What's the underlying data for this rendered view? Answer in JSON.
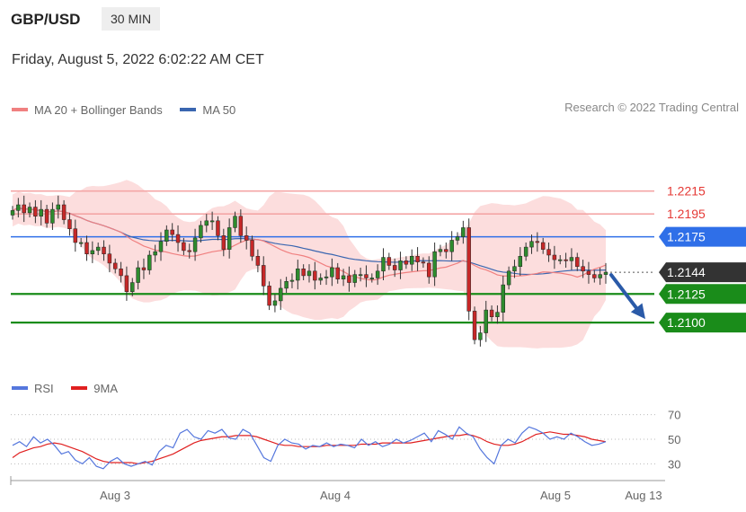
{
  "header": {
    "symbol": "GBP/USD",
    "timeframe": "30 MIN"
  },
  "datetime": "Friday, August 5, 2022 6:02:22 AM CET",
  "legend_main": [
    {
      "label": "MA 20 + Bollinger Bands",
      "color": "#f08080"
    },
    {
      "label": "MA 50",
      "color": "#3a66b0"
    }
  ],
  "legend_rsi": [
    {
      "label": "RSI",
      "color": "#5577dd"
    },
    {
      "label": "9MA",
      "color": "#e02020"
    }
  ],
  "copyright": "Research © 2022 Trading Central",
  "colors": {
    "resistance": "#f4a6a6",
    "pivot": "#2f6fe8",
    "support": "#1a8c1a",
    "current": "#333333",
    "bull": "#2e8b2e",
    "bear": "#c62828",
    "band": "#fcd7d7"
  },
  "chart_data": {
    "type": "candlestick",
    "x_ticks": [
      "Aug 3",
      "Aug 4",
      "Aug 5",
      "Aug 13"
    ],
    "y_range": [
      1.206,
      1.228
    ],
    "levels": [
      {
        "value": 1.2215,
        "label": "1.2215",
        "kind": "resistance"
      },
      {
        "value": 1.2195,
        "label": "1.2195",
        "kind": "resistance"
      },
      {
        "value": 1.2175,
        "label": "1.2175",
        "kind": "pivot"
      },
      {
        "value": 1.2144,
        "label": "1.2144",
        "kind": "current"
      },
      {
        "value": 1.2125,
        "label": "1.2125",
        "kind": "support"
      },
      {
        "value": 1.21,
        "label": "1.2100",
        "kind": "support"
      }
    ],
    "forecast": {
      "from": 1.2144,
      "to": 1.21,
      "direction": "down"
    },
    "close_series": [
      1.2198,
      1.2203,
      1.2196,
      1.2201,
      1.2193,
      1.2199,
      1.2187,
      1.2199,
      1.2203,
      1.219,
      1.2182,
      1.217,
      1.217,
      1.216,
      1.2163,
      1.2166,
      1.216,
      1.2152,
      1.2147,
      1.2141,
      1.2127,
      1.2135,
      1.2148,
      1.2146,
      1.2159,
      1.2162,
      1.2171,
      1.2181,
      1.2177,
      1.217,
      1.2163,
      1.2162,
      1.2174,
      1.2185,
      1.2189,
      1.2189,
      1.2176,
      1.2164,
      1.2183,
      1.2193,
      1.2176,
      1.2172,
      1.2158,
      1.215,
      1.2132,
      1.2115,
      1.2119,
      1.213,
      1.2136,
      1.2137,
      1.2147,
      1.2141,
      1.2145,
      1.2137,
      1.2139,
      1.214,
      1.2148,
      1.2138,
      1.2141,
      1.2135,
      1.2142,
      1.2142,
      1.2139,
      1.2139,
      1.2145,
      1.2157,
      1.215,
      1.2146,
      1.2154,
      1.2151,
      1.2158,
      1.2153,
      1.2152,
      1.214,
      1.2162,
      1.2164,
      1.2162,
      1.2172,
      1.2175,
      1.2183,
      1.211,
      1.2085,
      1.2091,
      1.2111,
      1.2105,
      1.2109,
      1.2133,
      1.2145,
      1.2149,
      1.2158,
      1.2166,
      1.2171,
      1.217,
      1.2164,
      1.2159,
      1.2155,
      1.2155,
      1.2154,
      1.2157,
      1.2149,
      1.2145,
      1.2142,
      1.2139,
      1.2142,
      1.2144
    ],
    "rsi": {
      "ticks": [
        70,
        50,
        30
      ],
      "range": [
        20,
        80
      ],
      "rsi_series": [
        45,
        48,
        44,
        52,
        47,
        50,
        45,
        38,
        40,
        33,
        30,
        35,
        28,
        26,
        32,
        35,
        30,
        28,
        30,
        32,
        29,
        40,
        45,
        43,
        55,
        58,
        52,
        50,
        57,
        55,
        58,
        51,
        50,
        58,
        55,
        45,
        35,
        32,
        45,
        50,
        47,
        46,
        42,
        45,
        44,
        47,
        44,
        46,
        45,
        43,
        50,
        45,
        48,
        44,
        46,
        50,
        47,
        49,
        52,
        55,
        48,
        57,
        54,
        50,
        60,
        55,
        52,
        42,
        35,
        30,
        45,
        50,
        47,
        55,
        60,
        58,
        55,
        50,
        52,
        50,
        55,
        52,
        48,
        45,
        46,
        48
      ],
      "ma9_series": [
        35,
        39,
        41,
        43,
        44,
        46,
        47,
        46,
        44,
        42,
        40,
        37,
        34,
        32,
        31,
        31,
        31,
        31,
        30,
        31,
        32,
        34,
        36,
        38,
        41,
        44,
        47,
        49,
        50,
        51,
        52,
        52,
        53,
        53,
        53,
        52,
        50,
        48,
        46,
        45,
        45,
        44,
        44,
        44,
        44,
        45,
        45,
        45,
        45,
        45,
        46,
        46,
        46,
        47,
        47,
        47,
        47,
        47,
        48,
        49,
        50,
        51,
        52,
        53,
        53,
        54,
        53,
        51,
        48,
        46,
        45,
        45,
        46,
        48,
        51,
        54,
        55,
        56,
        55,
        54,
        54,
        53,
        52,
        50,
        49,
        48
      ]
    }
  }
}
